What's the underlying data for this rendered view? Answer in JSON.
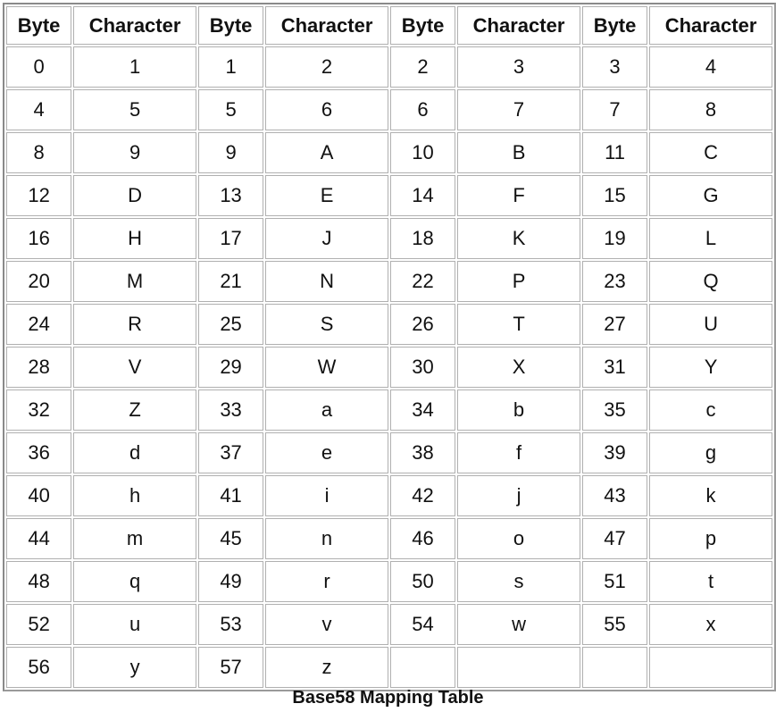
{
  "table": {
    "headers": [
      "Byte",
      "Character",
      "Byte",
      "Character",
      "Byte",
      "Character",
      "Byte",
      "Character"
    ],
    "rows": [
      [
        "0",
        "1",
        "1",
        "2",
        "2",
        "3",
        "3",
        "4"
      ],
      [
        "4",
        "5",
        "5",
        "6",
        "6",
        "7",
        "7",
        "8"
      ],
      [
        "8",
        "9",
        "9",
        "A",
        "10",
        "B",
        "11",
        "C"
      ],
      [
        "12",
        "D",
        "13",
        "E",
        "14",
        "F",
        "15",
        "G"
      ],
      [
        "16",
        "H",
        "17",
        "J",
        "18",
        "K",
        "19",
        "L"
      ],
      [
        "20",
        "M",
        "21",
        "N",
        "22",
        "P",
        "23",
        "Q"
      ],
      [
        "24",
        "R",
        "25",
        "S",
        "26",
        "T",
        "27",
        "U"
      ],
      [
        "28",
        "V",
        "29",
        "W",
        "30",
        "X",
        "31",
        "Y"
      ],
      [
        "32",
        "Z",
        "33",
        "a",
        "34",
        "b",
        "35",
        "c"
      ],
      [
        "36",
        "d",
        "37",
        "e",
        "38",
        "f",
        "39",
        "g"
      ],
      [
        "40",
        "h",
        "41",
        "i",
        "42",
        "j",
        "43",
        "k"
      ],
      [
        "44",
        "m",
        "45",
        "n",
        "46",
        "o",
        "47",
        "p"
      ],
      [
        "48",
        "q",
        "49",
        "r",
        "50",
        "s",
        "51",
        "t"
      ],
      [
        "52",
        "u",
        "53",
        "v",
        "54",
        "w",
        "55",
        "x"
      ],
      [
        "56",
        "y",
        "57",
        "z",
        "",
        "",
        "",
        ""
      ]
    ]
  },
  "caption": "Base58 Mapping Table"
}
